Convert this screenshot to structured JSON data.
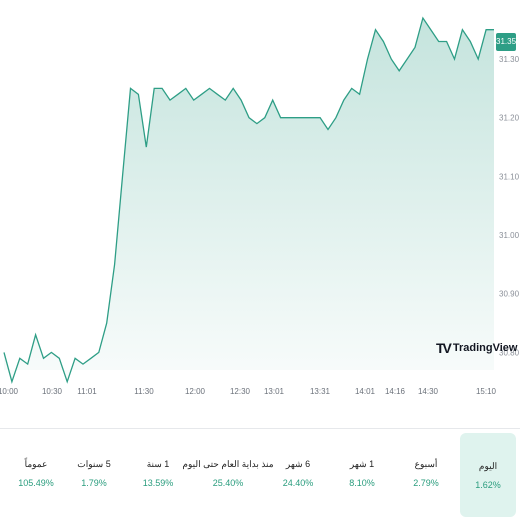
{
  "chart_data": {
    "type": "area",
    "title": "",
    "xlabel": "",
    "ylabel": "",
    "ylim": [
      30.77,
      31.37
    ],
    "y_ticks": [
      "31.30",
      "31.20",
      "31.10",
      "31.00",
      "30.90",
      "30.80"
    ],
    "x_ticks": [
      "10:00",
      "10:30",
      "11:01",
      "11:30",
      "12:00",
      "12:30",
      "13:01",
      "13:31",
      "14:01",
      "14:16",
      "14:30",
      "15:10"
    ],
    "last_price": "31.35",
    "line_color": "#2e9e86",
    "fill_color": "#2e9e86",
    "series": [
      {
        "x": [
          "10:00",
          "10:05",
          "10:10",
          "10:15",
          "10:20",
          "10:25",
          "10:30",
          "10:35",
          "10:40",
          "10:45",
          "10:50",
          "10:55",
          "11:00",
          "11:05",
          "11:10",
          "11:15",
          "11:20",
          "11:25",
          "11:30",
          "11:35",
          "11:40",
          "11:45",
          "11:50",
          "11:55",
          "12:00",
          "12:05",
          "12:10",
          "12:15",
          "12:20",
          "12:25",
          "12:30",
          "12:35",
          "12:40",
          "12:45",
          "12:50",
          "12:55",
          "13:00",
          "13:05",
          "13:10",
          "13:15",
          "13:20",
          "13:25",
          "13:30",
          "13:35",
          "13:40",
          "13:45",
          "13:50",
          "13:55",
          "14:00",
          "14:05",
          "14:10",
          "14:15",
          "14:20",
          "14:25",
          "14:30",
          "14:35",
          "14:40",
          "14:45",
          "14:50",
          "14:55",
          "15:00",
          "15:05",
          "15:10"
        ],
        "values": [
          30.8,
          30.75,
          30.79,
          30.78,
          30.83,
          30.79,
          30.8,
          30.79,
          30.75,
          30.79,
          30.78,
          30.79,
          30.8,
          30.85,
          30.95,
          31.1,
          31.25,
          31.24,
          31.15,
          31.25,
          31.25,
          31.23,
          31.24,
          31.25,
          31.23,
          31.24,
          31.25,
          31.24,
          31.23,
          31.25,
          31.23,
          31.2,
          31.19,
          31.2,
          31.23,
          31.2,
          31.2,
          31.2,
          31.2,
          31.2,
          31.2,
          31.18,
          31.2,
          31.23,
          31.25,
          31.24,
          31.3,
          31.35,
          31.33,
          31.3,
          31.28,
          31.3,
          31.32,
          31.37,
          31.35,
          31.33,
          31.33,
          31.3,
          31.35,
          31.33,
          31.3,
          31.35,
          31.35
        ]
      }
    ],
    "grid": false
  },
  "performance": [
    {
      "label": "عموماً",
      "value": "105.49%"
    },
    {
      "label": "5 سنوات",
      "value": "1.79%"
    },
    {
      "label": "1 سنة",
      "value": "13.59%"
    },
    {
      "label": "منذ بداية العام حتى اليوم",
      "value": "25.40%"
    },
    {
      "label": "6 شهر",
      "value": "24.40%"
    },
    {
      "label": "1 شهر",
      "value": "8.10%"
    },
    {
      "label": "أسبوع",
      "value": "2.79%"
    },
    {
      "label": "اليوم",
      "value": "1.62%"
    }
  ],
  "branding": {
    "logo_text": "TradingView"
  },
  "accent": "#2e9e86"
}
